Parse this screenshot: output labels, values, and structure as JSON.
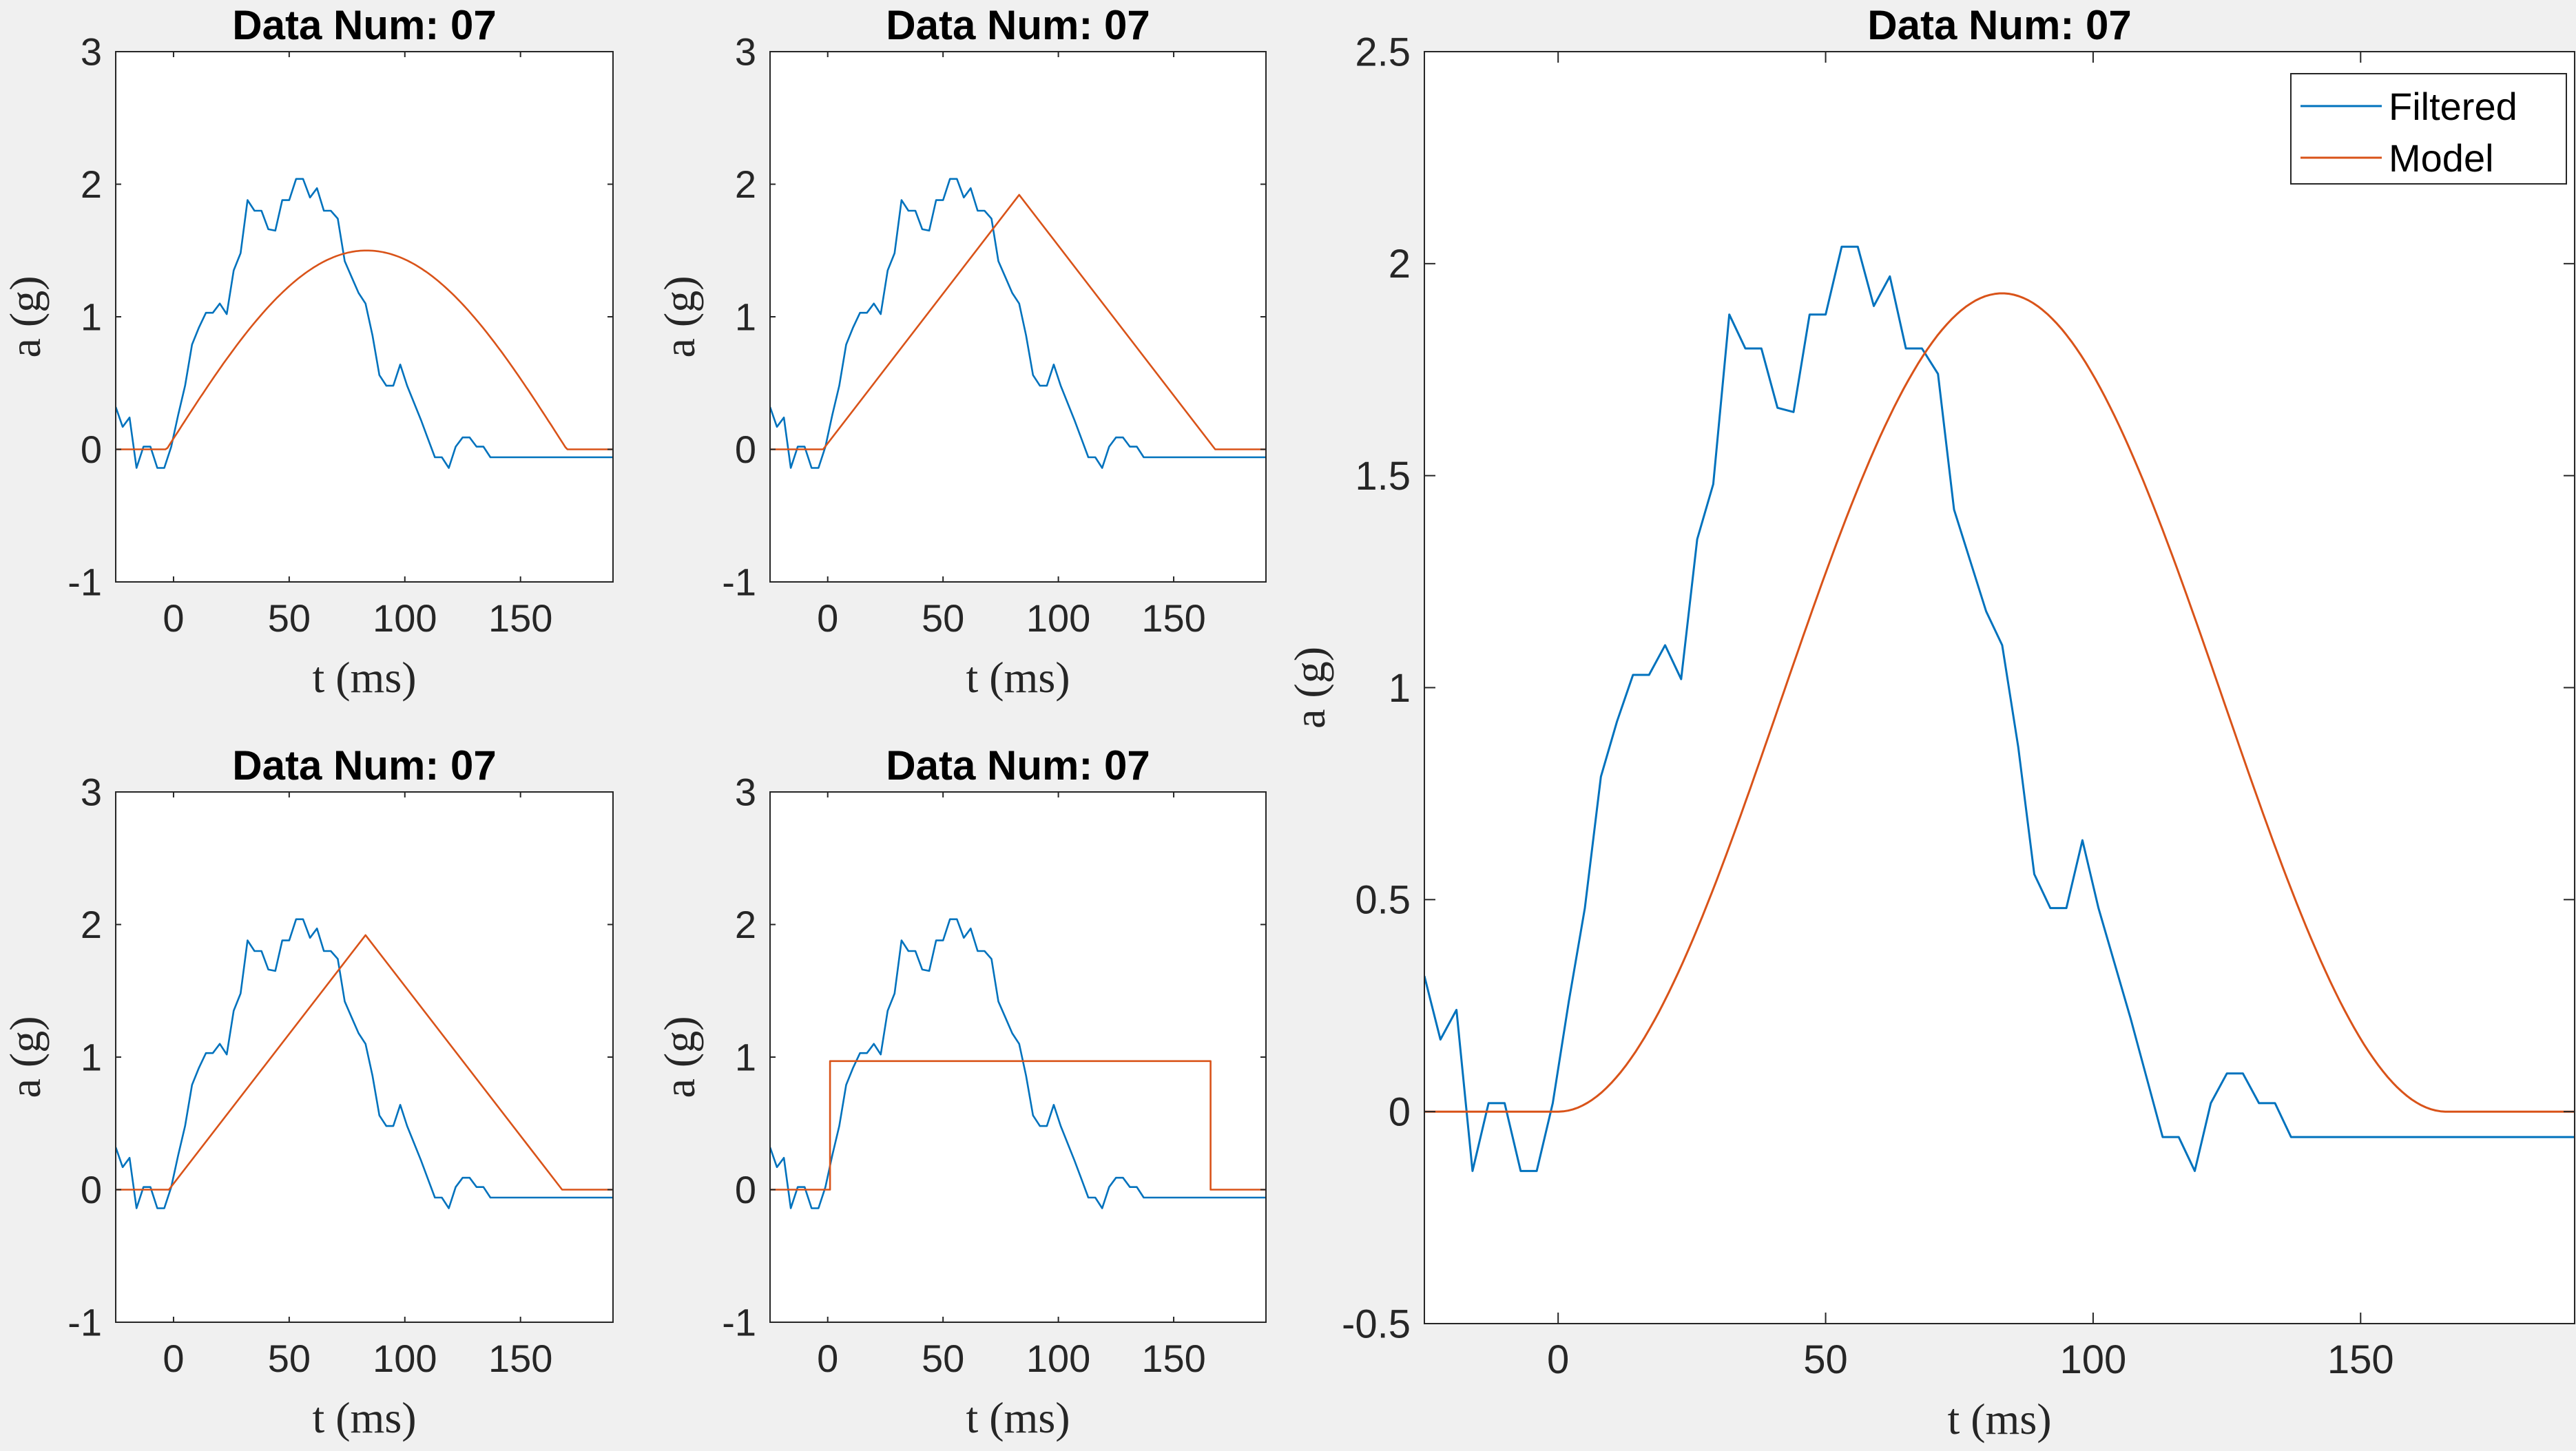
{
  "colors": {
    "filtered": "#0072BD",
    "model": "#D95319",
    "axes": "#262626",
    "plot_bg": "#ffffff",
    "figure_bg": "#f0f0f0"
  },
  "filtered_signal": {
    "t": [
      -25,
      -22,
      -19,
      -16,
      -13,
      -10,
      -7,
      -4,
      -1,
      2,
      5,
      8,
      11,
      14,
      17,
      20,
      23,
      26,
      29,
      32,
      35,
      38,
      41,
      44,
      47,
      50,
      53,
      56,
      59,
      62,
      65,
      68,
      71,
      74,
      77,
      80,
      83,
      86,
      89,
      92,
      95,
      98,
      101,
      104,
      107,
      110,
      113,
      116,
      119,
      122,
      125,
      128,
      131,
      134,
      137,
      140,
      143,
      146,
      149,
      152,
      155,
      158,
      161,
      164,
      167,
      170,
      173,
      176,
      179,
      182,
      185,
      188,
      191
    ],
    "a": [
      0.32,
      0.17,
      0.24,
      -0.14,
      0.02,
      0.02,
      -0.14,
      -0.14,
      0.02,
      0.26,
      0.48,
      0.79,
      0.92,
      1.03,
      1.03,
      1.1,
      1.02,
      1.35,
      1.48,
      1.88,
      1.8,
      1.8,
      1.66,
      1.65,
      1.88,
      1.88,
      2.04,
      2.04,
      1.9,
      1.97,
      1.8,
      1.8,
      1.74,
      1.42,
      1.3,
      1.18,
      1.1,
      0.86,
      0.56,
      0.48,
      0.48,
      0.64,
      0.48,
      0.35,
      0.22,
      0.08,
      -0.06,
      -0.06,
      -0.14,
      0.02,
      0.09,
      0.09,
      0.02,
      0.02,
      -0.06,
      -0.06,
      -0.06,
      -0.06,
      -0.06,
      -0.06,
      -0.06,
      -0.06,
      -0.06,
      -0.06,
      -0.06,
      -0.06,
      -0.06,
      -0.06,
      -0.06,
      -0.06,
      -0.06,
      -0.06,
      -0.06
    ]
  },
  "chart_data": [
    {
      "type": "line",
      "title": "Data Num: 07",
      "xlabel": "t (ms)",
      "ylabel": "a (g)",
      "xlim": [
        -25,
        190
      ],
      "ylim": [
        -1,
        3
      ],
      "xticks": [
        0,
        50,
        100,
        150
      ],
      "xtick_labels": [
        "0",
        "50",
        "100",
        "150"
      ],
      "yticks": [
        -1,
        0,
        1,
        2,
        3
      ],
      "ytick_labels": [
        "-1",
        "0",
        "1",
        "2",
        "3"
      ],
      "legend": null,
      "series": [
        {
          "role": "filtered",
          "source": "filtered_signal"
        },
        {
          "role": "model",
          "shape": "half-sine",
          "start": -3,
          "end": 170,
          "peak": 1.5
        }
      ]
    },
    {
      "type": "line",
      "title": "Data Num: 07",
      "xlabel": "t (ms)",
      "ylabel": "a (g)",
      "xlim": [
        -25,
        190
      ],
      "ylim": [
        -1,
        3
      ],
      "xticks": [
        0,
        50,
        100,
        150
      ],
      "xtick_labels": [
        "0",
        "50",
        "100",
        "150"
      ],
      "yticks": [
        -1,
        0,
        1,
        2,
        3
      ],
      "ytick_labels": [
        "-1",
        "0",
        "1",
        "2",
        "3"
      ],
      "legend": null,
      "series": [
        {
          "role": "filtered",
          "source": "filtered_signal"
        },
        {
          "role": "model",
          "shape": "triangle",
          "start": -2,
          "end": 168,
          "peak": 1.92
        }
      ]
    },
    {
      "type": "line",
      "title": "Data Num: 07",
      "xlabel": "t (ms)",
      "ylabel": "a (g)",
      "xlim": [
        -25,
        190
      ],
      "ylim": [
        -1,
        3
      ],
      "xticks": [
        0,
        50,
        100,
        150
      ],
      "xtick_labels": [
        "0",
        "50",
        "100",
        "150"
      ],
      "yticks": [
        -1,
        0,
        1,
        2,
        3
      ],
      "ytick_labels": [
        "-1",
        "0",
        "1",
        "2",
        "3"
      ],
      "legend": null,
      "series": [
        {
          "role": "filtered",
          "source": "filtered_signal"
        },
        {
          "role": "model",
          "shape": "triangle",
          "start": -2,
          "end": 168,
          "peak": 1.92
        }
      ]
    },
    {
      "type": "line",
      "title": "Data Num: 07",
      "xlabel": "t (ms)",
      "ylabel": "a (g)",
      "xlim": [
        -25,
        190
      ],
      "ylim": [
        -1,
        3
      ],
      "xticks": [
        0,
        50,
        100,
        150
      ],
      "xtick_labels": [
        "0",
        "50",
        "100",
        "150"
      ],
      "yticks": [
        -1,
        0,
        1,
        2,
        3
      ],
      "ytick_labels": [
        "-1",
        "0",
        "1",
        "2",
        "3"
      ],
      "legend": null,
      "series": [
        {
          "role": "filtered",
          "source": "filtered_signal"
        },
        {
          "role": "model",
          "shape": "rectangle",
          "start": 1,
          "end": 166,
          "peak": 0.97
        }
      ]
    },
    {
      "type": "line",
      "title": "Data Num: 07",
      "xlabel": "t (ms)",
      "ylabel": "a (g)",
      "xlim": [
        -25,
        190
      ],
      "ylim": [
        -0.5,
        2.5
      ],
      "xticks": [
        0,
        50,
        100,
        150
      ],
      "xtick_labels": [
        "0",
        "50",
        "100",
        "150"
      ],
      "yticks": [
        -0.5,
        0,
        0.5,
        1,
        1.5,
        2,
        2.5
      ],
      "ytick_labels": [
        "-0.5",
        "0",
        "0.5",
        "1",
        "1.5",
        "2",
        "2.5"
      ],
      "legend": {
        "position": "top-right",
        "entries": [
          "Filtered",
          "Model"
        ]
      },
      "series": [
        {
          "role": "filtered",
          "name": "Filtered",
          "source": "filtered_signal"
        },
        {
          "role": "model",
          "name": "Model",
          "shape": "haversine",
          "start": 0,
          "end": 166,
          "peak": 1.93
        }
      ]
    }
  ]
}
